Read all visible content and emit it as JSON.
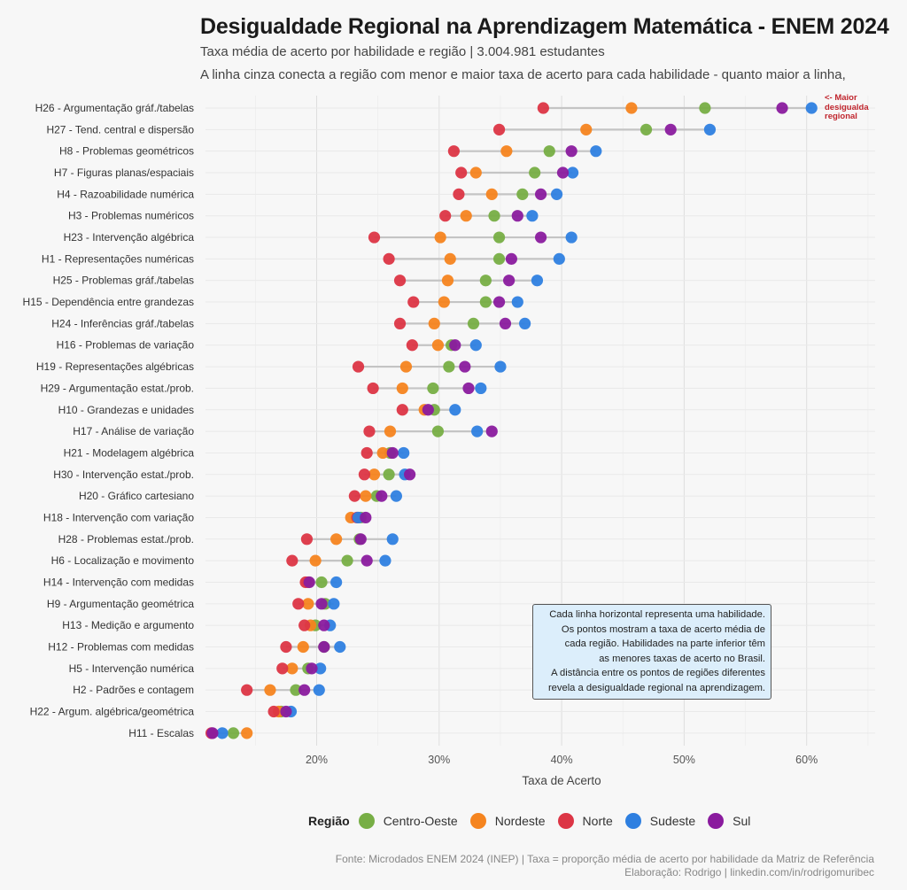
{
  "chart_data": {
    "type": "scatter",
    "subtype": "dumbbell",
    "title": "Desigualdade Regional na Aprendizagem Matemática - ENEM 2024",
    "subtitle": "Taxa média de acerto por habilidade e região | 3.004.981 estudantes",
    "subtitle2": "A linha cinza conecta a região com menor e maior taxa de acerto para cada habilidade - quanto maior a linha,",
    "xlabel": "Taxa de Acerto",
    "ylabel": "",
    "xlim": [
      10,
      65
    ],
    "xticks": [
      20,
      30,
      40,
      50,
      60
    ],
    "xtick_labels": [
      "20%",
      "30%",
      "40%",
      "50%",
      "60%"
    ],
    "grid": true,
    "legend_title": "Região",
    "legend_position": "bottom",
    "series_order": [
      "Centro-Oeste",
      "Nordeste",
      "Norte",
      "Sudeste",
      "Sul"
    ],
    "colors": {
      "Centro-Oeste": "#77ae45",
      "Nordeste": "#f5841f",
      "Norte": "#dc3545",
      "Sudeste": "#2e7fe0",
      "Sul": "#8a1b9e"
    },
    "categories": [
      {
        "label": "H26 - Argumentação gráf./tabelas",
        "values": {
          "Norte": 38.5,
          "Nordeste": 45.7,
          "Centro-Oeste": 51.7,
          "Sul": 58.0,
          "Sudeste": 60.4
        }
      },
      {
        "label": "H27 - Tend. central e dispersão",
        "values": {
          "Norte": 34.9,
          "Nordeste": 42.0,
          "Centro-Oeste": 46.9,
          "Sul": 48.9,
          "Sudeste": 52.1
        }
      },
      {
        "label": "H8 - Problemas geométricos",
        "values": {
          "Norte": 31.2,
          "Nordeste": 35.5,
          "Centro-Oeste": 39.0,
          "Sul": 40.8,
          "Sudeste": 42.8
        }
      },
      {
        "label": "H7 - Figuras planas/espaciais",
        "values": {
          "Norte": 31.8,
          "Nordeste": 33.0,
          "Centro-Oeste": 37.8,
          "Sul": 40.1,
          "Sudeste": 40.9
        }
      },
      {
        "label": "H4 - Razoabilidade numérica",
        "values": {
          "Norte": 31.6,
          "Nordeste": 34.3,
          "Centro-Oeste": 36.8,
          "Sul": 38.3,
          "Sudeste": 39.6
        }
      },
      {
        "label": "H3 - Problemas numéricos",
        "values": {
          "Norte": 30.5,
          "Nordeste": 32.2,
          "Centro-Oeste": 34.5,
          "Sul": 36.4,
          "Sudeste": 37.6
        }
      },
      {
        "label": "H23 - Intervenção algébrica",
        "values": {
          "Norte": 24.7,
          "Nordeste": 30.1,
          "Centro-Oeste": 34.9,
          "Sul": 38.3,
          "Sudeste": 40.8
        }
      },
      {
        "label": "H1 - Representações numéricas",
        "values": {
          "Norte": 25.9,
          "Nordeste": 30.9,
          "Centro-Oeste": 34.9,
          "Sul": 35.9,
          "Sudeste": 39.8
        }
      },
      {
        "label": "H25 - Problemas gráf./tabelas",
        "values": {
          "Norte": 26.8,
          "Nordeste": 30.7,
          "Centro-Oeste": 33.8,
          "Sul": 35.7,
          "Sudeste": 38.0
        }
      },
      {
        "label": "H15 - Dependência entre grandezas",
        "values": {
          "Norte": 27.9,
          "Nordeste": 30.4,
          "Centro-Oeste": 33.8,
          "Sul": 34.9,
          "Sudeste": 36.4
        }
      },
      {
        "label": "H24 - Inferências gráf./tabelas",
        "values": {
          "Norte": 26.8,
          "Nordeste": 29.6,
          "Centro-Oeste": 32.8,
          "Sul": 35.4,
          "Sudeste": 37.0
        }
      },
      {
        "label": "H16 - Problemas de variação",
        "values": {
          "Norte": 27.8,
          "Nordeste": 29.9,
          "Centro-Oeste": 31.0,
          "Sul": 31.3,
          "Sudeste": 33.0
        }
      },
      {
        "label": "H19 - Representações algébricas",
        "values": {
          "Norte": 23.4,
          "Nordeste": 27.3,
          "Centro-Oeste": 30.8,
          "Sul": 32.1,
          "Sudeste": 35.0
        }
      },
      {
        "label": "H29 - Argumentação estat./prob.",
        "values": {
          "Norte": 24.6,
          "Nordeste": 27.0,
          "Centro-Oeste": 29.5,
          "Sul": 32.4,
          "Sudeste": 33.4
        }
      },
      {
        "label": "H10 - Grandezas e unidades",
        "values": {
          "Norte": 27.0,
          "Nordeste": 28.8,
          "Centro-Oeste": 29.6,
          "Sul": 29.1,
          "Sudeste": 31.3
        }
      },
      {
        "label": "H17 - Análise de variação",
        "values": {
          "Norte": 24.3,
          "Nordeste": 26.0,
          "Centro-Oeste": 29.9,
          "Sudeste": 33.1,
          "Sul": 34.3
        }
      },
      {
        "label": "H21 - Modelagem algébrica",
        "values": {
          "Norte": 24.1,
          "Nordeste": 25.4,
          "Centro-Oeste": 26.0,
          "Sul": 26.2,
          "Sudeste": 27.1
        }
      },
      {
        "label": "H30 - Intervenção estat./prob.",
        "values": {
          "Norte": 23.9,
          "Nordeste": 24.7,
          "Centro-Oeste": 25.9,
          "Sudeste": 27.2,
          "Sul": 27.6
        }
      },
      {
        "label": "H20 - Gráfico cartesiano",
        "values": {
          "Norte": 23.1,
          "Nordeste": 24.0,
          "Centro-Oeste": 24.9,
          "Sul": 25.3,
          "Sudeste": 26.5
        }
      },
      {
        "label": "H18 - Intervenção com variação",
        "values": {
          "Nordeste": 22.8,
          "Norte": 23.3,
          "Sudeste": 23.4,
          "Centro-Oeste": 23.6,
          "Sul": 24.0
        }
      },
      {
        "label": "H28 - Problemas estat./prob.",
        "values": {
          "Norte": 19.2,
          "Nordeste": 21.6,
          "Centro-Oeste": 23.5,
          "Sul": 23.6,
          "Sudeste": 26.2
        }
      },
      {
        "label": "H6 - Localização e movimento",
        "values": {
          "Norte": 18.0,
          "Nordeste": 19.9,
          "Centro-Oeste": 22.5,
          "Sul": 24.1,
          "Sudeste": 25.6
        }
      },
      {
        "label": "H14 - Intervenção com medidas",
        "values": {
          "Norte": 19.1,
          "Nordeste": 19.3,
          "Sul": 19.4,
          "Centro-Oeste": 20.4,
          "Sudeste": 21.6
        }
      },
      {
        "label": "H9 - Argumentação geométrica",
        "values": {
          "Norte": 18.5,
          "Nordeste": 19.3,
          "Sul": 20.4,
          "Centro-Oeste": 20.7,
          "Sudeste": 21.4
        }
      },
      {
        "label": "H13 - Medição e argumento",
        "values": {
          "Norte": 19.0,
          "Nordeste": 19.5,
          "Centro-Oeste": 19.9,
          "Sul": 20.6,
          "Sudeste": 21.1
        }
      },
      {
        "label": "H12 - Problemas com medidas",
        "values": {
          "Norte": 17.5,
          "Nordeste": 18.9,
          "Centro-Oeste": 20.6,
          "Sul": 20.6,
          "Sudeste": 21.9
        }
      },
      {
        "label": "H5 - Intervenção numérica",
        "values": {
          "Norte": 17.2,
          "Nordeste": 18.0,
          "Centro-Oeste": 19.3,
          "Sul": 19.6,
          "Sudeste": 20.3
        }
      },
      {
        "label": "H2 - Padrões e contagem",
        "values": {
          "Norte": 14.3,
          "Nordeste": 16.2,
          "Centro-Oeste": 18.3,
          "Sul": 19.0,
          "Sudeste": 20.2
        }
      },
      {
        "label": "H22 - Argum. algébrica/geométrica",
        "values": {
          "Norte": 16.5,
          "Nordeste": 16.9,
          "Centro-Oeste": 17.1,
          "Sul": 17.5,
          "Sudeste": 17.9
        }
      },
      {
        "label": "H11 - Escalas",
        "values": {
          "Norte": 11.4,
          "Sul": 11.5,
          "Sudeste": 12.3,
          "Centro-Oeste": 13.2,
          "Nordeste": 14.3
        }
      }
    ],
    "annotation_top": [
      "<- Maior",
      "desigualda",
      "regional"
    ],
    "note_box": [
      "Cada linha horizontal representa uma habilidade.",
      "Os pontos mostram a taxa de acerto média de",
      "cada região. Habilidades na parte inferior têm",
      "as menores taxas de acerto no Brasil.",
      "A distância entre os pontos de regiões diferentes",
      "revela a desigualdade regional na aprendizagem."
    ]
  },
  "legend": {
    "title": "Região",
    "items": [
      {
        "label": "Centro-Oeste",
        "color": "#77ae45"
      },
      {
        "label": "Nordeste",
        "color": "#f5841f"
      },
      {
        "label": "Norte",
        "color": "#dc3545"
      },
      {
        "label": "Sudeste",
        "color": "#2e7fe0"
      },
      {
        "label": "Sul",
        "color": "#8a1b9e"
      }
    ]
  },
  "footer": {
    "line1": "Fonte: Microdados ENEM 2024 (INEP) | Taxa = proporção média de acerto por habilidade da Matriz de Referência",
    "line2": "Elaboração: Rodrigo | linkedin.com/in/rodrigomuribec"
  }
}
